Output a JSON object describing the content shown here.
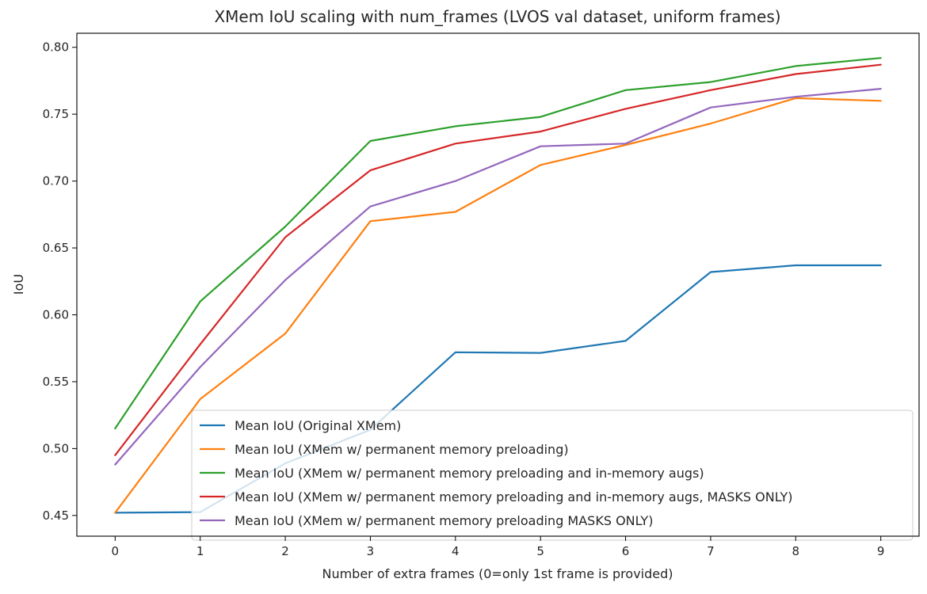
{
  "chart_data": {
    "type": "line",
    "title": "XMem IoU scaling with num_frames (LVOS val dataset, uniform frames)",
    "xlabel": "Number of extra frames (0=only 1st frame is provided)",
    "ylabel": "IoU",
    "x": [
      0,
      1,
      2,
      3,
      4,
      5,
      6,
      7,
      8,
      9
    ],
    "xlim": [
      -0.45,
      9.45
    ],
    "ylim": [
      0.4345,
      0.8105
    ],
    "xticks": [
      "0",
      "1",
      "2",
      "3",
      "4",
      "5",
      "6",
      "7",
      "8",
      "9"
    ],
    "yticks": [
      "0.45",
      "0.50",
      "0.55",
      "0.60",
      "0.65",
      "0.70",
      "0.75",
      "0.80"
    ],
    "ytick_values": [
      0.45,
      0.5,
      0.55,
      0.6,
      0.65,
      0.7,
      0.75,
      0.8
    ],
    "grid": false,
    "legend_position": "lower-right",
    "series": [
      {
        "name": "Mean IoU (Original XMem)",
        "color": "#1f77b4",
        "values": [
          0.452,
          0.4525,
          0.489,
          0.514,
          0.572,
          0.5715,
          0.5805,
          0.632,
          0.637,
          0.637
        ]
      },
      {
        "name": "Mean IoU (XMem w/ permanent memory preloading)",
        "color": "#ff7f0e",
        "values": [
          0.452,
          0.537,
          0.586,
          0.67,
          0.677,
          0.712,
          0.727,
          0.743,
          0.762,
          0.76
        ]
      },
      {
        "name": "Mean IoU (XMem w/ permanent memory preloading and in-memory augs)",
        "color": "#2ca02c",
        "values": [
          0.515,
          0.61,
          0.666,
          0.73,
          0.741,
          0.748,
          0.768,
          0.774,
          0.786,
          0.792
        ]
      },
      {
        "name": "Mean IoU (XMem w/ permanent memory preloading and in-memory augs, MASKS ONLY)",
        "color": "#d62728",
        "values": [
          0.495,
          0.578,
          0.658,
          0.708,
          0.728,
          0.737,
          0.754,
          0.768,
          0.78,
          0.787
        ]
      },
      {
        "name": "Mean IoU (XMem w/ permanent memory preloading MASKS ONLY)",
        "color": "#9467bd",
        "values": [
          0.488,
          0.561,
          0.626,
          0.681,
          0.7,
          0.726,
          0.728,
          0.755,
          0.763,
          0.769
        ]
      }
    ]
  }
}
